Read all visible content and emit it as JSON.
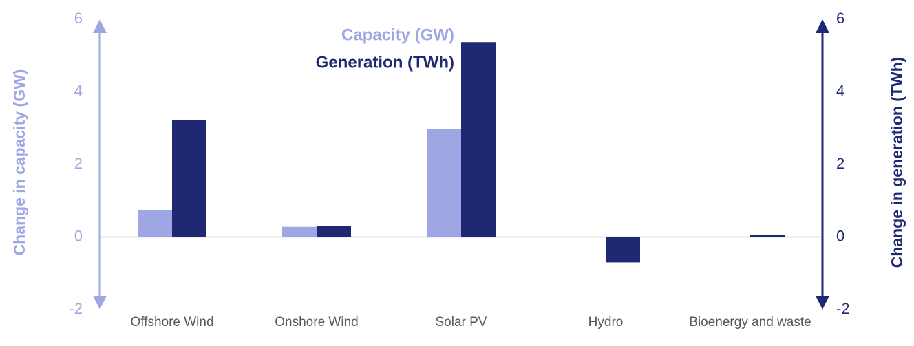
{
  "chart_data": {
    "type": "bar",
    "categories": [
      "Offshore Wind",
      "Onshore Wind",
      "Solar PV",
      "Hydro",
      "Bioenergy and waste"
    ],
    "series": [
      {
        "name": "Capacity (GW)",
        "color": "#9ea7e4",
        "values": [
          0.74,
          0.28,
          2.98,
          0,
          0
        ]
      },
      {
        "name": "Generation (TWh)",
        "color": "#1f2873",
        "axis": "y2",
        "values": [
          3.23,
          0.3,
          5.37,
          -0.7,
          0.05
        ]
      }
    ],
    "y_label": "Change in capacity (GW)",
    "y2_label": "Change in generation (TWh)",
    "ylim": [
      -2,
      6
    ],
    "yticks": [
      -2,
      0,
      2,
      4,
      6
    ],
    "y2lim": [
      -2,
      6
    ],
    "y2ticks": [
      -2,
      0,
      2,
      4,
      6
    ]
  }
}
